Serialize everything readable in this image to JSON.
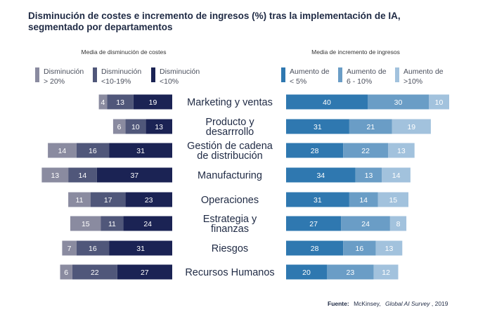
{
  "title_line1": "Disminución de costes e incremento de ingresos (%) tras la implementación de IA,",
  "title_line2": "segmentado por departamentos",
  "source_label": "Fuente:",
  "source_org": "McKinsey,",
  "source_pub": "Global AI Survey",
  "source_year": ", 2019",
  "colors": {
    "cost_gt20": "#8a8ba0",
    "cost_10_19": "#50577a",
    "cost_lt10": "#1b2354",
    "rev_lt5": "#2f78b0",
    "rev_6_10": "#6a9dc6",
    "rev_gt10": "#a2c2dd"
  },
  "chart_data": [
    {
      "type": "bar",
      "orientation": "horizontal",
      "title": "Media de disminución de costes",
      "categories": [
        "Marketing y ventas",
        "Producto y desarrollo",
        "Gestión de cadena de distribución",
        "Manufacturing",
        "Operaciones",
        "Estrategia y finanzas",
        "Riesgos",
        "Recursos Humanos"
      ],
      "series": [
        {
          "name": "Disminución > 20%",
          "values": [
            4,
            6,
            14,
            13,
            11,
            15,
            7,
            6
          ]
        },
        {
          "name": "Disminución <10-19%",
          "values": [
            13,
            10,
            16,
            14,
            17,
            11,
            16,
            22
          ]
        },
        {
          "name": "Disminución <10%",
          "values": [
            19,
            13,
            31,
            37,
            23,
            24,
            31,
            27
          ]
        }
      ]
    },
    {
      "type": "bar",
      "orientation": "horizontal",
      "title": "Media de incremento de ingresos",
      "categories": [
        "Marketing y ventas",
        "Producto y desarrollo",
        "Gestión de cadena de distribución",
        "Manufacturing",
        "Operaciones",
        "Estrategia y finanzas",
        "Riesgos",
        "Recursos Humanos"
      ],
      "series": [
        {
          "name": "Aumento de < 5%",
          "values": [
            40,
            31,
            28,
            34,
            31,
            27,
            28,
            20
          ]
        },
        {
          "name": "Aumento de 6 - 10%",
          "values": [
            30,
            21,
            22,
            13,
            14,
            24,
            16,
            23
          ]
        },
        {
          "name": "Aumento de >10%",
          "values": [
            10,
            19,
            13,
            14,
            15,
            8,
            13,
            12
          ]
        }
      ]
    }
  ],
  "category_lines": [
    [
      "Marketing y ventas"
    ],
    [
      "Producto y",
      "desarrrollo"
    ],
    [
      "Gestión de cadena",
      "de distribución"
    ],
    [
      "Manufacturing"
    ],
    [
      "Operaciones"
    ],
    [
      "Estrategia y",
      "finanzas"
    ],
    [
      "Riesgos"
    ],
    [
      "Recursos Humanos"
    ]
  ],
  "cost_legend": [
    [
      "Disminución",
      "> 20%"
    ],
    [
      "Disminución",
      "<10-19%"
    ],
    [
      "Disminución",
      "<10%"
    ]
  ],
  "rev_legend": [
    [
      "Aumento de",
      "< 5%"
    ],
    [
      "Aumento de",
      "6 - 10%"
    ],
    [
      "Aumento de",
      ">10%"
    ]
  ]
}
